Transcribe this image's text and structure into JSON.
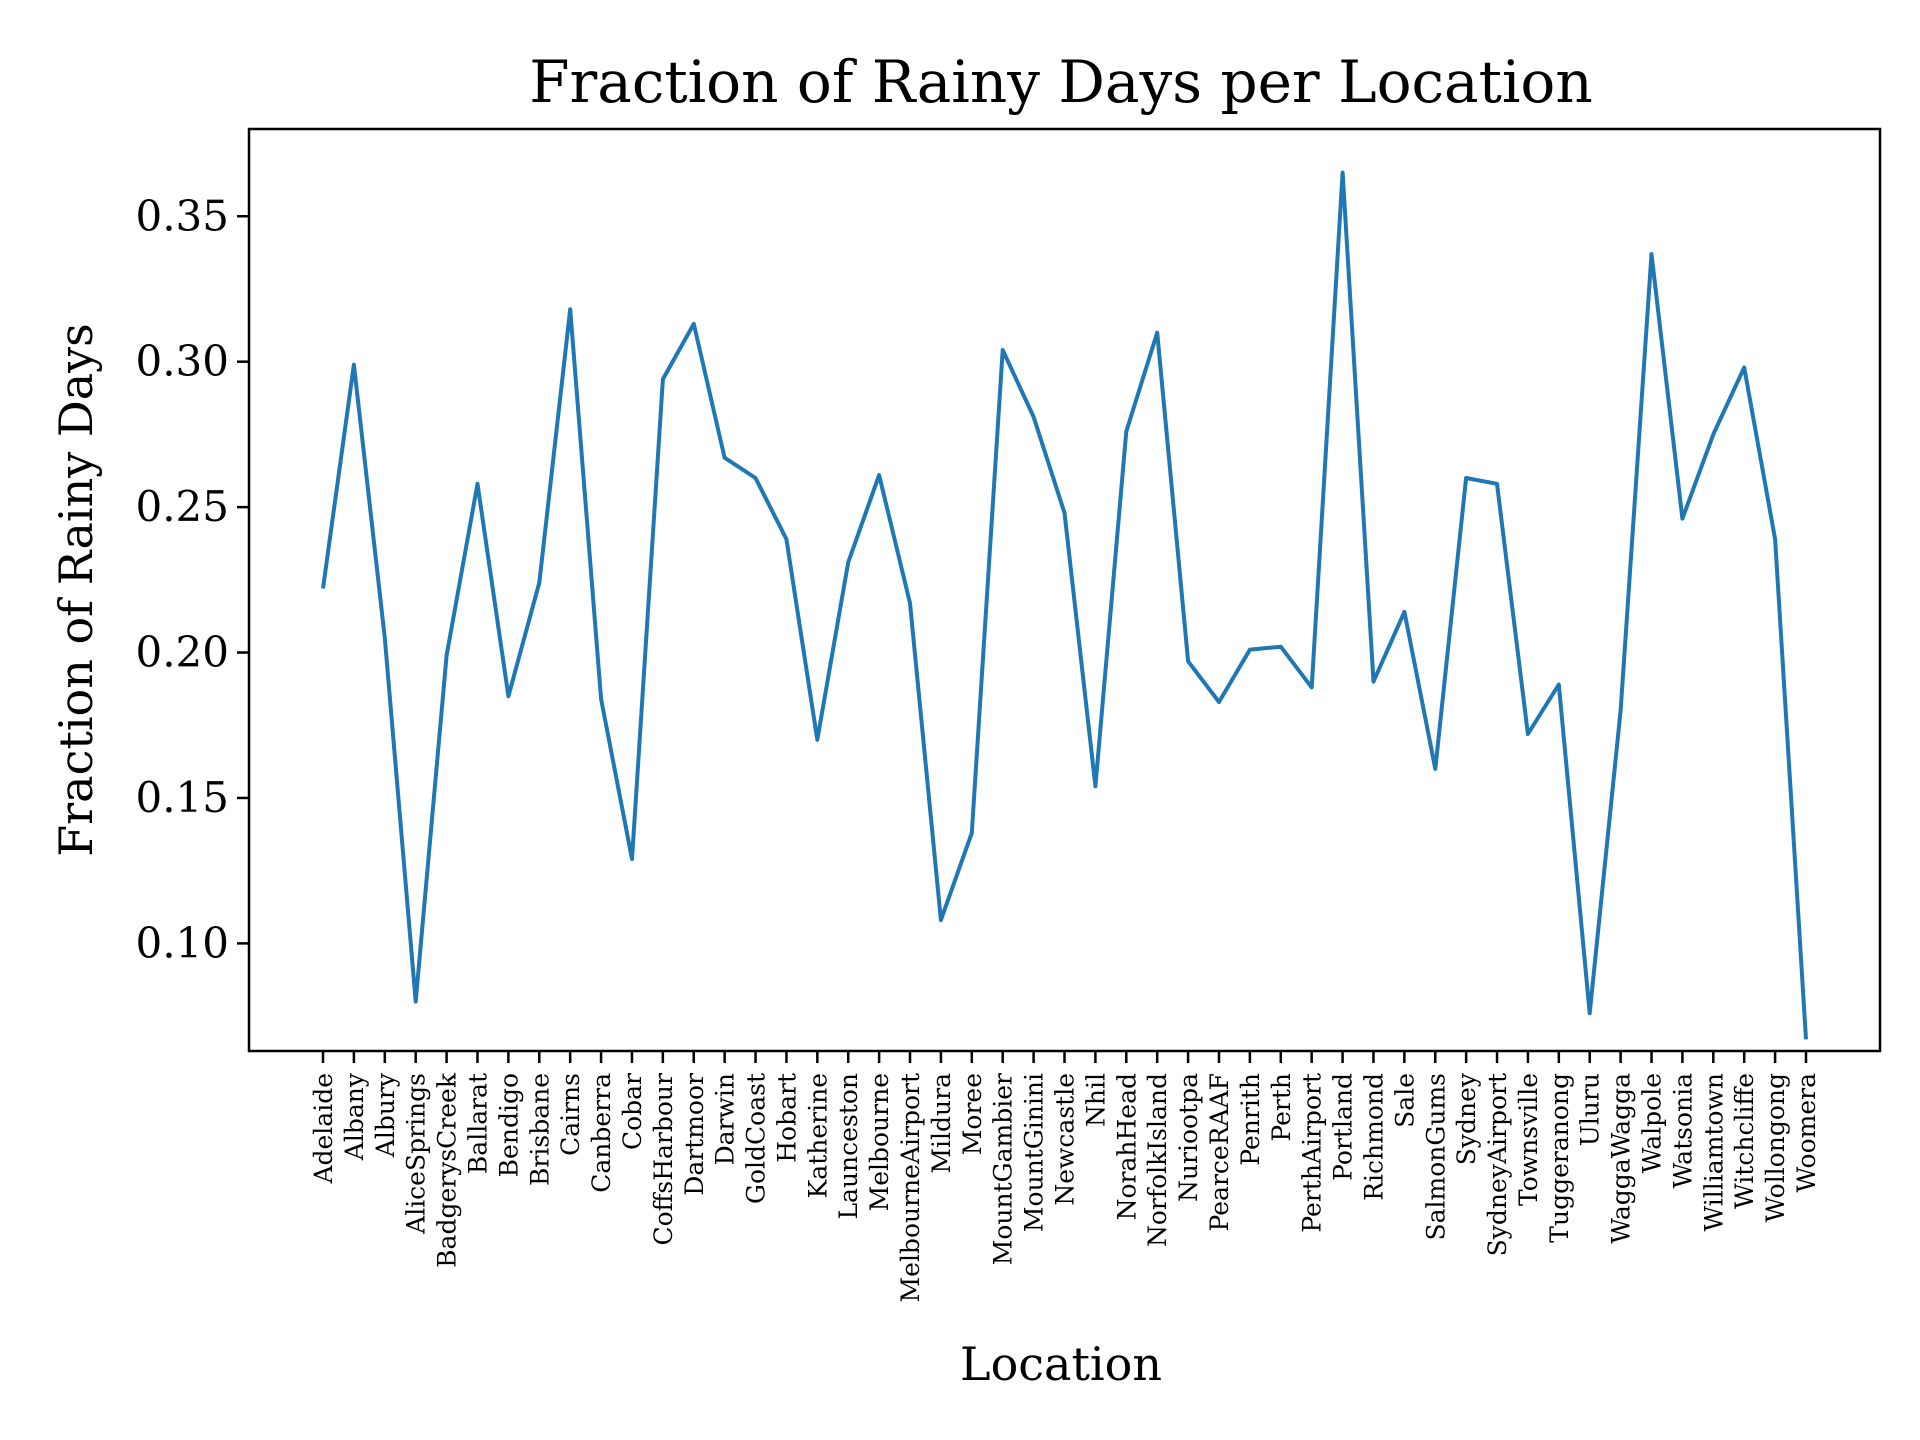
{
  "chart_data": {
    "type": "line",
    "title": "Fraction of Rainy Days per Location",
    "xlabel": "Location",
    "ylabel": "Fraction of Rainy Days",
    "ylim": [
      0.063,
      0.38
    ],
    "yticks": [
      0.1,
      0.15,
      0.2,
      0.25,
      0.3,
      0.35
    ],
    "grid": false,
    "line_color": "#1f77b4",
    "categories": [
      "Adelaide",
      "Albany",
      "Albury",
      "AliceSprings",
      "BadgerysCreek",
      "Ballarat",
      "Bendigo",
      "Brisbane",
      "Cairns",
      "Canberra",
      "Cobar",
      "CoffsHarbour",
      "Dartmoor",
      "Darwin",
      "GoldCoast",
      "Hobart",
      "Katherine",
      "Launceston",
      "Melbourne",
      "MelbourneAirport",
      "Mildura",
      "Moree",
      "MountGambier",
      "MountGinini",
      "Newcastle",
      "Nhil",
      "NorahHead",
      "NorfolkIsland",
      "Nuriootpa",
      "PearceRAAF",
      "Penrith",
      "Perth",
      "PerthAirport",
      "Portland",
      "Richmond",
      "Sale",
      "SalmonGums",
      "Sydney",
      "SydneyAirport",
      "Townsville",
      "Tuggeranong",
      "Uluru",
      "WaggaWagga",
      "Walpole",
      "Watsonia",
      "Williamtown",
      "Witchcliffe",
      "Wollongong",
      "Woomera"
    ],
    "series": [
      {
        "values": [
          0.222,
          0.299,
          0.205,
          0.08,
          0.199,
          0.258,
          0.185,
          0.224,
          0.318,
          0.184,
          0.129,
          0.294,
          0.313,
          0.267,
          0.26,
          0.239,
          0.17,
          0.231,
          0.261,
          0.217,
          0.108,
          0.138,
          0.304,
          0.281,
          0.248,
          0.154,
          0.276,
          0.31,
          0.197,
          0.183,
          0.201,
          0.202,
          0.188,
          0.365,
          0.19,
          0.214,
          0.16,
          0.26,
          0.258,
          0.172,
          0.189,
          0.076,
          0.18,
          0.337,
          0.246,
          0.275,
          0.298,
          0.239,
          0.067
        ]
      }
    ]
  }
}
